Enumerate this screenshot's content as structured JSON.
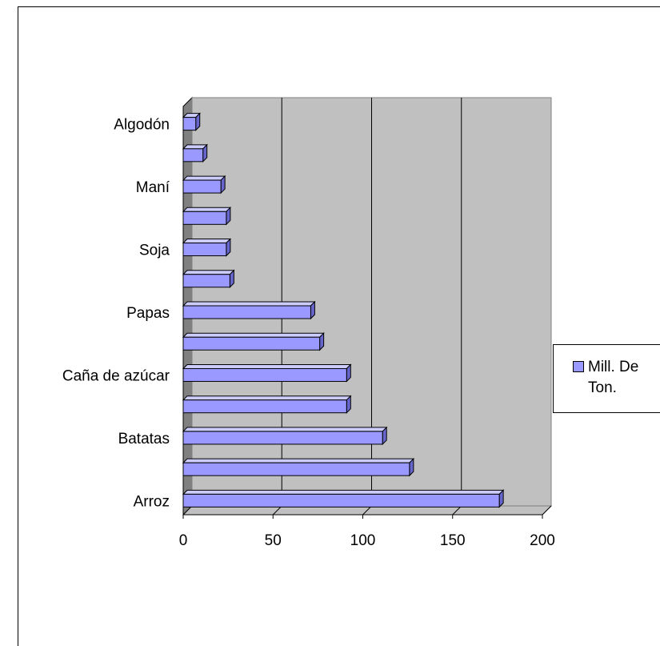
{
  "chart_data": {
    "type": "bar",
    "orientation": "horizontal",
    "three_d": true,
    "categories": [
      "Arroz",
      "",
      "Batatas",
      "",
      "Caña de azúcar",
      "",
      "Papas",
      "",
      "Soja",
      "",
      "Maní",
      "",
      "Algodón"
    ],
    "series": [
      {
        "name": "Mill. De Ton.",
        "values": [
          176,
          126,
          111,
          91,
          91,
          76,
          71,
          26,
          24,
          24,
          21,
          11,
          7
        ]
      }
    ],
    "xlim": [
      0,
      200
    ],
    "xticks": [
      0,
      50,
      100,
      150,
      200
    ],
    "xtick_labels": [
      "0",
      "50",
      "100",
      "150",
      "200"
    ],
    "grid": true,
    "legend_position": "right",
    "legend_lines": [
      "Mill. De",
      "Ton."
    ],
    "colors": {
      "bar_front": "#9999ff",
      "bar_top": "#ccccff",
      "bar_side": "#6666cc",
      "plot_wall": "#c0c0c0",
      "side_wall": "#808080",
      "floor": "#c0c0c0"
    }
  }
}
